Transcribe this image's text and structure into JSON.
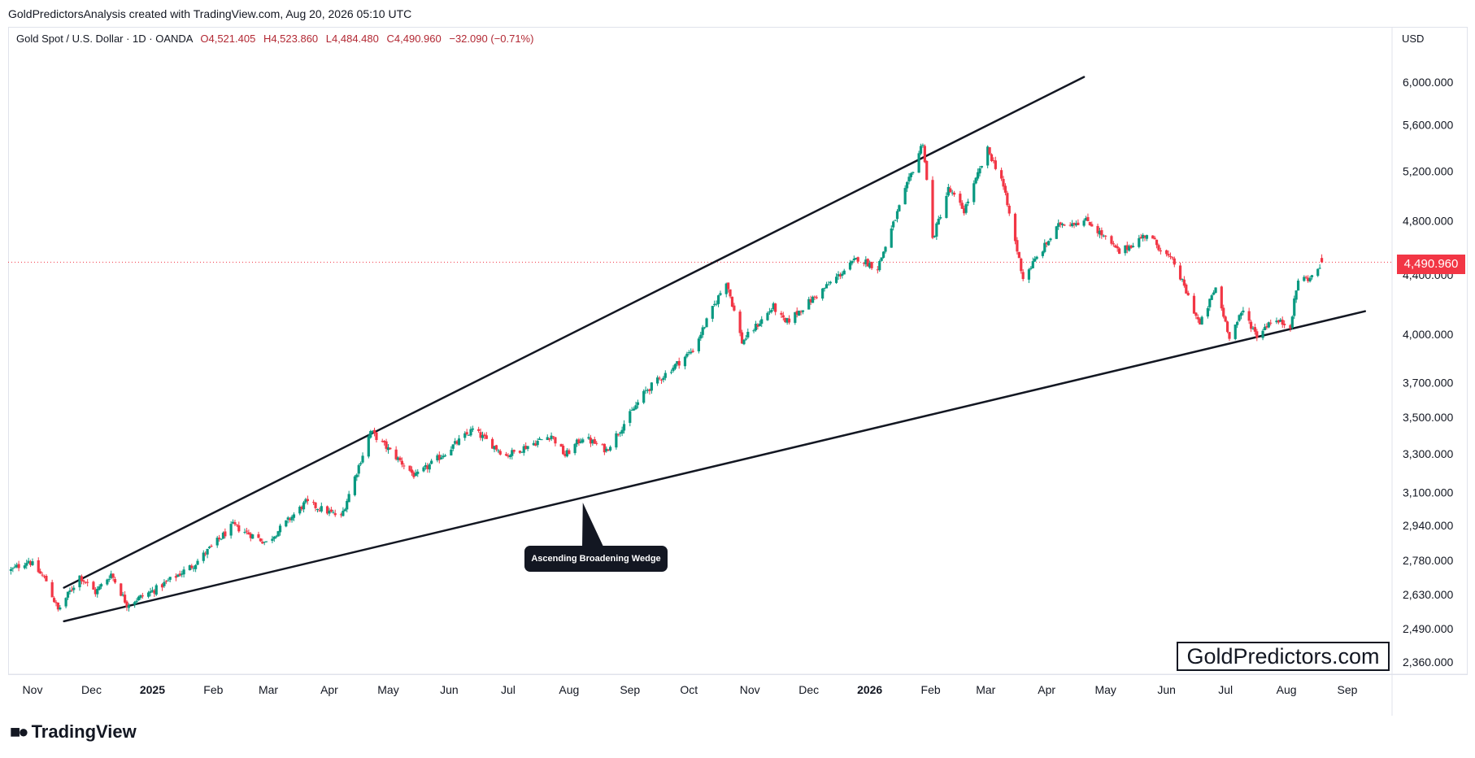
{
  "header": {
    "credit": "GoldPredictorsAnalysis created with TradingView.com, Aug 20, 2026 05:10 UTC"
  },
  "legend": {
    "symbol": "Gold Spot / U.S. Dollar · 1D · OANDA",
    "open": "O4,521.405",
    "high": "H4,523.860",
    "low": "L4,484.480",
    "close": "C4,490.960",
    "change": "−32.090 (−0.71%)"
  },
  "currency": "USD",
  "last_price_label": "4,490.960",
  "annotation": "Ascending Broadening Wedge",
  "watermark": "GoldPredictors.com",
  "footer_logo": "TradingView",
  "colors": {
    "up": "#089981",
    "down": "#f23645",
    "trendline": "#131722",
    "price_line": "#f23645"
  },
  "chart_data": {
    "type": "candlestick",
    "y_scale": "log",
    "ylim": [
      2300,
      6300
    ],
    "y_ticks": [
      2360,
      2490,
      2630,
      2780,
      2940,
      3100,
      3300,
      3500,
      3700,
      4000,
      4400,
      4800,
      5200,
      5600,
      6000
    ],
    "y_tick_labels": [
      "2,360.000",
      "2,490.000",
      "2,630.000",
      "2,780.000",
      "2,940.000",
      "3,100.000",
      "3,300.000",
      "3,500.000",
      "3,700.000",
      "4,000.000",
      "4,400.000",
      "4,800.000",
      "5,200.000",
      "5,600.000",
      "6,000.000"
    ],
    "x_ticks": [
      {
        "label": "Nov",
        "date": "2024-11-01",
        "bold": false
      },
      {
        "label": "Dec",
        "date": "2024-12-01",
        "bold": false
      },
      {
        "label": "2025",
        "date": "2025-01-01",
        "bold": true
      },
      {
        "label": "Feb",
        "date": "2025-02-01",
        "bold": false
      },
      {
        "label": "Mar",
        "date": "2025-03-01",
        "bold": false
      },
      {
        "label": "Apr",
        "date": "2025-04-01",
        "bold": false
      },
      {
        "label": "May",
        "date": "2025-05-01",
        "bold": false
      },
      {
        "label": "Jun",
        "date": "2025-06-01",
        "bold": false
      },
      {
        "label": "Jul",
        "date": "2025-07-01",
        "bold": false
      },
      {
        "label": "Aug",
        "date": "2025-08-01",
        "bold": false
      },
      {
        "label": "Sep",
        "date": "2025-09-01",
        "bold": false
      },
      {
        "label": "Oct",
        "date": "2025-10-01",
        "bold": false
      },
      {
        "label": "Nov",
        "date": "2025-11-01",
        "bold": false
      },
      {
        "label": "Dec",
        "date": "2025-12-01",
        "bold": false
      },
      {
        "label": "2026",
        "date": "2026-01-01",
        "bold": true
      },
      {
        "label": "Feb",
        "date": "2026-02-01",
        "bold": false
      },
      {
        "label": "Mar",
        "date": "2026-03-01",
        "bold": false
      },
      {
        "label": "Apr",
        "date": "2026-04-01",
        "bold": false
      },
      {
        "label": "May",
        "date": "2026-05-01",
        "bold": false
      },
      {
        "label": "Jun",
        "date": "2026-06-01",
        "bold": false
      },
      {
        "label": "Jul",
        "date": "2026-07-01",
        "bold": false
      },
      {
        "label": "Aug",
        "date": "2026-08-01",
        "bold": false
      },
      {
        "label": "Sep",
        "date": "2026-09-01",
        "bold": false
      }
    ],
    "last_price": 4490.96,
    "close_path": [
      {
        "date": "2024-10-21",
        "close": 2735
      },
      {
        "date": "2024-10-30",
        "close": 2780
      },
      {
        "date": "2024-11-08",
        "close": 2690
      },
      {
        "date": "2024-11-14",
        "close": 2565
      },
      {
        "date": "2024-11-25",
        "close": 2710
      },
      {
        "date": "2024-12-03",
        "close": 2640
      },
      {
        "date": "2024-12-11",
        "close": 2720
      },
      {
        "date": "2024-12-19",
        "close": 2590
      },
      {
        "date": "2025-01-02",
        "close": 2650
      },
      {
        "date": "2025-01-22",
        "close": 2760
      },
      {
        "date": "2025-02-11",
        "close": 2940
      },
      {
        "date": "2025-02-28",
        "close": 2860
      },
      {
        "date": "2025-03-20",
        "close": 3050
      },
      {
        "date": "2025-04-07",
        "close": 2980
      },
      {
        "date": "2025-04-22",
        "close": 3420
      },
      {
        "date": "2025-05-15",
        "close": 3180
      },
      {
        "date": "2025-06-13",
        "close": 3430
      },
      {
        "date": "2025-06-30",
        "close": 3290
      },
      {
        "date": "2025-07-23",
        "close": 3400
      },
      {
        "date": "2025-07-30",
        "close": 3290
      },
      {
        "date": "2025-08-08",
        "close": 3390
      },
      {
        "date": "2025-08-20",
        "close": 3320
      },
      {
        "date": "2025-09-09",
        "close": 3650
      },
      {
        "date": "2025-10-03",
        "close": 3900
      },
      {
        "date": "2025-10-20",
        "close": 4360
      },
      {
        "date": "2025-10-28",
        "close": 3950
      },
      {
        "date": "2025-11-13",
        "close": 4180
      },
      {
        "date": "2025-11-19",
        "close": 4070
      },
      {
        "date": "2025-12-26",
        "close": 4520
      },
      {
        "date": "2026-01-05",
        "close": 4450
      },
      {
        "date": "2026-01-28",
        "close": 5450
      },
      {
        "date": "2026-02-02",
        "close": 4660
      },
      {
        "date": "2026-02-10",
        "close": 5050
      },
      {
        "date": "2026-02-18",
        "close": 4880
      },
      {
        "date": "2026-03-02",
        "close": 5380
      },
      {
        "date": "2026-03-09",
        "close": 5140
      },
      {
        "date": "2026-03-20",
        "close": 4380
      },
      {
        "date": "2026-04-08",
        "close": 4780
      },
      {
        "date": "2026-04-22",
        "close": 4800
      },
      {
        "date": "2026-05-08",
        "close": 4560
      },
      {
        "date": "2026-05-22",
        "close": 4700
      },
      {
        "date": "2026-06-05",
        "close": 4480
      },
      {
        "date": "2026-06-18",
        "close": 4060
      },
      {
        "date": "2026-06-26",
        "close": 4310
      },
      {
        "date": "2026-07-03",
        "close": 3990
      },
      {
        "date": "2026-07-10",
        "close": 4150
      },
      {
        "date": "2026-07-17",
        "close": 3990
      },
      {
        "date": "2026-07-24",
        "close": 4090
      },
      {
        "date": "2026-08-03",
        "close": 4060
      },
      {
        "date": "2026-08-07",
        "close": 4370
      },
      {
        "date": "2026-08-14",
        "close": 4380
      },
      {
        "date": "2026-08-19",
        "close": 4490.96
      }
    ],
    "trendlines": [
      {
        "name": "upper",
        "start": {
          "date": "2024-11-17",
          "price": 2660
        },
        "end": {
          "date": "2026-04-20",
          "price": 6050
        }
      },
      {
        "name": "lower",
        "start": {
          "date": "2024-11-17",
          "price": 2520
        },
        "end": {
          "date": "2026-09-10",
          "price": 4150
        }
      }
    ],
    "annotation_anchor": {
      "date": "2025-08-08",
      "price": 3050
    },
    "price_line": 4490.96
  }
}
